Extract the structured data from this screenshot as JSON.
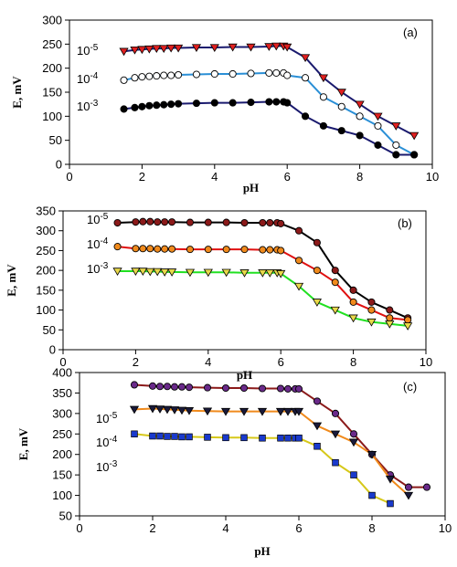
{
  "chart_data": [
    {
      "type": "line",
      "panel_label": "(a)",
      "xlabel": "pH",
      "ylabel": "E, mV",
      "xlim": [
        0,
        10
      ],
      "ylim": [
        0,
        300
      ],
      "xticks": [
        0,
        2,
        4,
        6,
        8,
        10
      ],
      "yticks": [
        0,
        50,
        100,
        150,
        200,
        250,
        300
      ],
      "grid": false,
      "series": [
        {
          "name": "10-5",
          "label_base": "10",
          "label_exp": "-5",
          "marker": "triangle-down",
          "marker_color": "#e02020",
          "line_color": "#1a1a6e",
          "x": [
            1.5,
            1.8,
            2.0,
            2.2,
            2.4,
            2.6,
            2.8,
            3.0,
            3.5,
            4.0,
            4.5,
            5.0,
            5.5,
            5.7,
            5.9,
            6.0,
            6.5,
            7.0,
            7.5,
            8.0,
            8.5,
            9.0,
            9.5
          ],
          "y": [
            235,
            238,
            239,
            240,
            241,
            241,
            242,
            242,
            243,
            243,
            244,
            244,
            245,
            246,
            246,
            244,
            222,
            180,
            150,
            125,
            100,
            80,
            60
          ]
        },
        {
          "name": "10-4",
          "label_base": "10",
          "label_exp": "-4",
          "marker": "circle",
          "marker_color": "#ffffff",
          "line_color": "#2a8fd6",
          "x": [
            1.5,
            1.8,
            2.0,
            2.2,
            2.4,
            2.6,
            2.8,
            3.0,
            3.5,
            4.0,
            4.5,
            5.0,
            5.5,
            5.7,
            5.9,
            6.0,
            6.5,
            7.0,
            7.5,
            8.0,
            8.5,
            9.0,
            9.5
          ],
          "y": [
            175,
            180,
            182,
            183,
            184,
            185,
            185,
            186,
            187,
            188,
            188,
            189,
            190,
            190,
            190,
            185,
            180,
            140,
            120,
            100,
            80,
            40,
            20
          ]
        },
        {
          "name": "10-3",
          "label_base": "10",
          "label_exp": "-3",
          "marker": "circle",
          "marker_color": "#000000",
          "line_color": "#1a1a6e",
          "x": [
            1.5,
            1.8,
            2.0,
            2.2,
            2.4,
            2.6,
            2.8,
            3.0,
            3.5,
            4.0,
            4.5,
            5.0,
            5.5,
            5.7,
            5.9,
            6.0,
            6.5,
            7.0,
            7.5,
            8.0,
            8.5,
            9.0,
            9.5
          ],
          "y": [
            115,
            118,
            120,
            122,
            123,
            124,
            125,
            126,
            127,
            128,
            128,
            129,
            130,
            130,
            130,
            128,
            100,
            80,
            70,
            60,
            40,
            20,
            20
          ]
        }
      ]
    },
    {
      "type": "line",
      "panel_label": "(b)",
      "xlabel": "pH",
      "ylabel": "E, mV",
      "xlim": [
        0,
        10
      ],
      "ylim": [
        0,
        350
      ],
      "xticks": [
        0,
        2,
        4,
        6,
        8,
        10
      ],
      "yticks": [
        0,
        50,
        100,
        150,
        200,
        250,
        300,
        350
      ],
      "grid": false,
      "series": [
        {
          "name": "10-5",
          "label_base": "10",
          "label_exp": "-5",
          "marker": "circle",
          "marker_color": "#8b1a1a",
          "line_color": "#000000",
          "x": [
            1.5,
            2.0,
            2.2,
            2.4,
            2.6,
            2.8,
            3.0,
            3.5,
            4.0,
            4.5,
            5.0,
            5.5,
            5.7,
            5.9,
            6.0,
            6.5,
            7.0,
            7.5,
            8.0,
            8.5,
            9.0,
            9.5
          ],
          "y": [
            320,
            322,
            323,
            323,
            322,
            322,
            322,
            321,
            321,
            321,
            320,
            320,
            320,
            320,
            318,
            300,
            270,
            200,
            150,
            120,
            100,
            80
          ]
        },
        {
          "name": "10-4",
          "label_base": "10",
          "label_exp": "-4",
          "marker": "circle",
          "marker_color": "#f08a1c",
          "line_color": "#e01010",
          "x": [
            1.5,
            2.0,
            2.2,
            2.4,
            2.6,
            2.8,
            3.0,
            3.5,
            4.0,
            4.5,
            5.0,
            5.5,
            5.7,
            5.9,
            6.0,
            6.5,
            7.0,
            7.5,
            8.0,
            8.5,
            9.0,
            9.5
          ],
          "y": [
            260,
            255,
            255,
            255,
            254,
            254,
            254,
            253,
            253,
            253,
            253,
            252,
            252,
            252,
            250,
            225,
            200,
            170,
            120,
            100,
            80,
            75
          ]
        },
        {
          "name": "10-3",
          "label_base": "10",
          "label_exp": "-3",
          "marker": "triangle-down",
          "marker_color": "#e8d84a",
          "line_color": "#20e020",
          "x": [
            1.5,
            2.0,
            2.2,
            2.4,
            2.6,
            2.8,
            3.0,
            3.5,
            4.0,
            4.5,
            5.0,
            5.5,
            5.7,
            5.9,
            6.0,
            6.5,
            7.0,
            7.5,
            8.0,
            8.5,
            9.0,
            9.5
          ],
          "y": [
            198,
            198,
            198,
            197,
            197,
            196,
            196,
            195,
            195,
            195,
            194,
            194,
            194,
            194,
            192,
            160,
            120,
            100,
            80,
            70,
            65,
            60
          ]
        }
      ]
    },
    {
      "type": "line",
      "panel_label": "(c)",
      "xlabel": "pH",
      "ylabel": "E, mV",
      "xlim": [
        0,
        10
      ],
      "ylim": [
        50,
        400
      ],
      "xticks": [
        0,
        2,
        4,
        6,
        8,
        10
      ],
      "yticks": [
        50,
        100,
        150,
        200,
        250,
        300,
        350,
        400
      ],
      "grid": false,
      "series": [
        {
          "name": "10-5",
          "label_base": "10",
          "label_exp": "-5",
          "marker": "circle",
          "marker_color": "#6a2a8a",
          "line_color": "#8b1a1a",
          "x": [
            1.5,
            2.0,
            2.2,
            2.4,
            2.6,
            2.8,
            3.0,
            3.5,
            4.0,
            4.5,
            5.0,
            5.5,
            5.7,
            5.9,
            6.0,
            6.5,
            7.0,
            7.5,
            8.0,
            8.5,
            9.0,
            9.5
          ],
          "y": [
            370,
            367,
            366,
            366,
            365,
            365,
            364,
            363,
            362,
            362,
            361,
            361,
            360,
            360,
            360,
            330,
            300,
            250,
            200,
            150,
            120,
            120
          ]
        },
        {
          "name": "10-4",
          "label_base": "10",
          "label_exp": "-4",
          "marker": "triangle-down",
          "marker_color": "#1a1a3a",
          "line_color": "#f08a1c",
          "x": [
            1.5,
            2.0,
            2.2,
            2.4,
            2.6,
            2.8,
            3.0,
            3.5,
            4.0,
            4.5,
            5.0,
            5.5,
            5.7,
            5.9,
            6.0,
            6.5,
            7.0,
            7.5,
            8.0,
            8.5,
            9.0
          ],
          "y": [
            310,
            312,
            311,
            310,
            309,
            308,
            307,
            306,
            305,
            305,
            305,
            305,
            305,
            305,
            305,
            270,
            250,
            230,
            200,
            140,
            100
          ]
        },
        {
          "name": "10-3",
          "label_base": "10",
          "label_exp": "-3",
          "marker": "square",
          "marker_color": "#1a3acc",
          "line_color": "#d6c81a",
          "x": [
            1.5,
            2.0,
            2.2,
            2.4,
            2.6,
            2.8,
            3.0,
            3.5,
            4.0,
            4.5,
            5.0,
            5.5,
            5.7,
            5.9,
            6.0,
            6.5,
            7.0,
            7.5,
            8.0,
            8.5
          ],
          "y": [
            250,
            245,
            245,
            244,
            244,
            243,
            243,
            242,
            241,
            241,
            240,
            240,
            240,
            240,
            240,
            220,
            180,
            150,
            100,
            80
          ]
        }
      ]
    }
  ]
}
